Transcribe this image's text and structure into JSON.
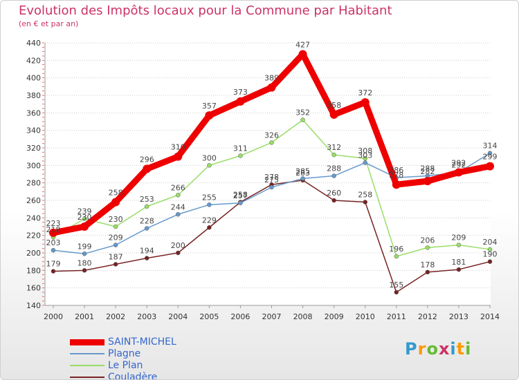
{
  "title": "Evolution des Impôts locaux pour la Commune par Habitant",
  "subtitle": "(en € et par an)",
  "logo": {
    "text": "Proxiti",
    "colors": [
      "#3399cc",
      "#ff9900",
      "#66bb33",
      "#cc3366",
      "#3399cc",
      "#ff9900",
      "#66bb33"
    ]
  },
  "chart_data": {
    "type": "line",
    "title": "Evolution des Impôts locaux pour la Commune par Habitant",
    "subtitle": "(en € et par an)",
    "xlabel": "",
    "ylabel": "",
    "x": [
      "2000",
      "2001",
      "2002",
      "2003",
      "2004",
      "2005",
      "2006",
      "2007",
      "2008",
      "2009",
      "2010",
      "2011",
      "2012",
      "2013",
      "2014"
    ],
    "ylim": [
      140,
      440
    ],
    "yticks": [
      140,
      160,
      180,
      200,
      220,
      240,
      260,
      280,
      300,
      320,
      340,
      360,
      380,
      400,
      420,
      440
    ],
    "grid": "horizontal",
    "legend_position": "bottom-left",
    "series": [
      {
        "name": "SAINT-MICHEL",
        "color": "#ee0000",
        "values": [
          223,
          230,
          258,
          296,
          310,
          357,
          373,
          389,
          427,
          358,
          372,
          278,
          282,
          292,
          299
        ]
      },
      {
        "name": "Plagne",
        "color": "#6699cc",
        "values": [
          203,
          199,
          209,
          228,
          244,
          255,
          257,
          275,
          285,
          288,
          303,
          286,
          288,
          292,
          314
        ]
      },
      {
        "name": "Le Plan",
        "color": "#99dd66",
        "values": [
          218,
          239,
          230,
          253,
          266,
          300,
          311,
          326,
          352,
          312,
          308,
          196,
          206,
          209,
          204
        ]
      },
      {
        "name": "Couladère",
        "color": "#772222",
        "values": [
          179,
          180,
          187,
          194,
          200,
          229,
          258,
          278,
          283,
          260,
          258,
          155,
          178,
          181,
          190
        ]
      }
    ]
  }
}
